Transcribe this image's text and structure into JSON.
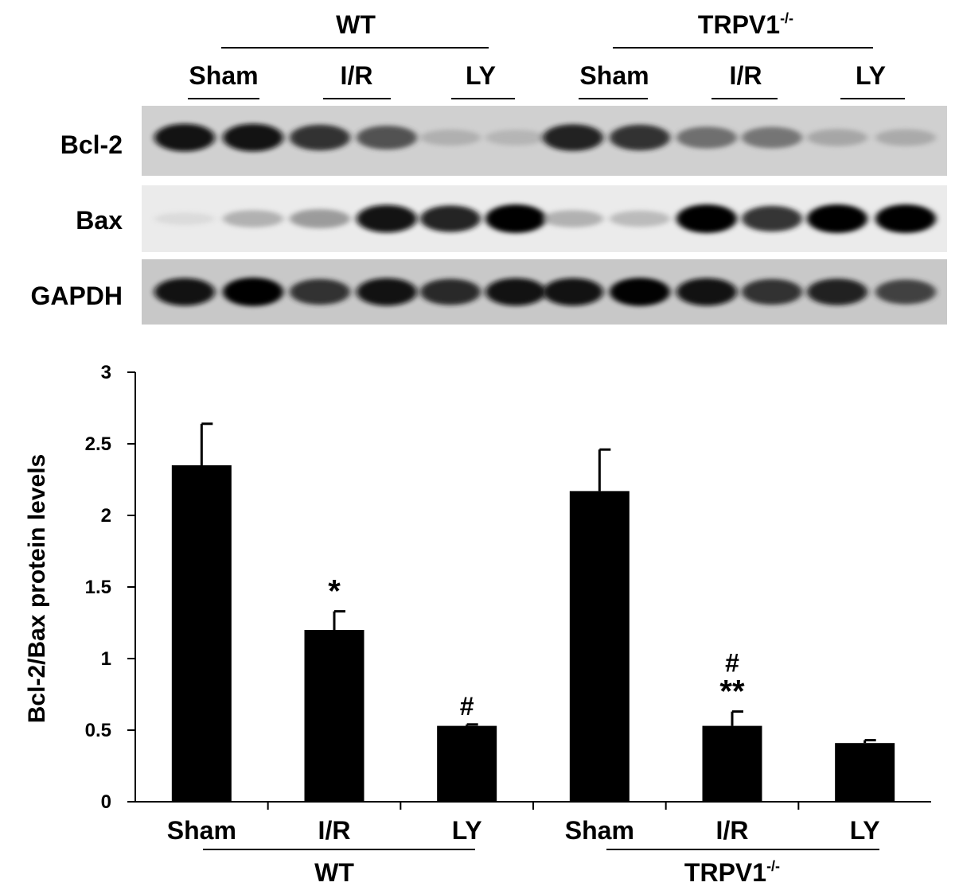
{
  "blot": {
    "groups": [
      {
        "label": "WT",
        "sup": ""
      },
      {
        "label": "TRPV1",
        "sup": "-/-"
      }
    ],
    "lanes": [
      "Sham",
      "I/R",
      "LY",
      "Sham",
      "I/R",
      "LY"
    ],
    "rows": [
      {
        "label": "Bcl-2",
        "intensity": [
          0.95,
          0.95,
          0.85,
          0.75,
          0.35,
          0.32,
          0.9,
          0.85,
          0.65,
          0.62,
          0.4,
          0.38
        ]
      },
      {
        "label": "Bax",
        "intensity": [
          0.15,
          0.4,
          0.5,
          0.95,
          0.9,
          1.0,
          0.4,
          0.35,
          1.0,
          0.85,
          1.0,
          1.0
        ]
      },
      {
        "label": "GAPDH",
        "intensity": [
          0.95,
          1.0,
          0.85,
          0.95,
          0.88,
          0.95,
          0.95,
          0.98,
          0.95,
          0.85,
          0.9,
          0.8
        ]
      }
    ]
  },
  "chart_data": {
    "type": "bar",
    "ylabel": "Bcl-2/Bax protein levels",
    "ylim": [
      0,
      3
    ],
    "yticks": [
      "0",
      "0.5",
      "1",
      "1.5",
      "2",
      "2.5",
      "3"
    ],
    "categories": [
      "Sham",
      "I/R",
      "LY",
      "Sham",
      "I/R",
      "LY"
    ],
    "values": [
      2.35,
      1.2,
      0.53,
      2.17,
      0.53,
      0.41
    ],
    "errors": [
      0.29,
      0.13,
      0.01,
      0.29,
      0.1,
      0.02
    ],
    "annotations": [
      "",
      "*",
      "#",
      "",
      "#\n**",
      ""
    ],
    "groups": [
      {
        "label": "WT",
        "sup": "",
        "categories": [
          0,
          1,
          2
        ]
      },
      {
        "label": "TRPV1",
        "sup": "-/-",
        "categories": [
          3,
          4,
          5
        ]
      }
    ],
    "bar_color": "#000000",
    "grid": false
  }
}
